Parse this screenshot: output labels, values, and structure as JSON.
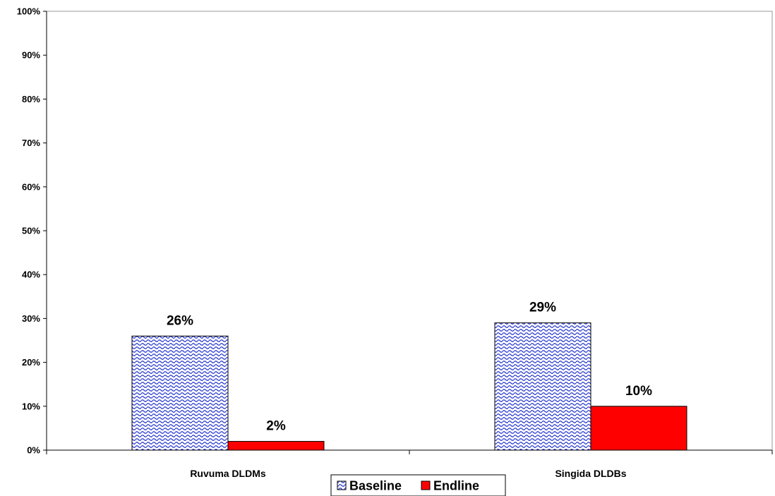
{
  "chart_data": {
    "type": "bar",
    "categories": [
      "Ruvuma DLDMs",
      "Singida DLDBs"
    ],
    "series": [
      {
        "name": "Baseline",
        "values": [
          26,
          29
        ],
        "data_labels": [
          "26%",
          "29%"
        ],
        "color": "#2233cc",
        "pattern": "wave"
      },
      {
        "name": "Endline",
        "values": [
          2,
          10
        ],
        "data_labels": [
          "2%",
          "10%"
        ],
        "color": "#ff0000",
        "pattern": "solid"
      }
    ],
    "y_ticks": [
      "0%",
      "10%",
      "20%",
      "30%",
      "40%",
      "50%",
      "60%",
      "70%",
      "80%",
      "90%",
      "100%"
    ],
    "ylim": [
      0,
      100
    ],
    "grid": false,
    "legend_position": "bottom"
  }
}
